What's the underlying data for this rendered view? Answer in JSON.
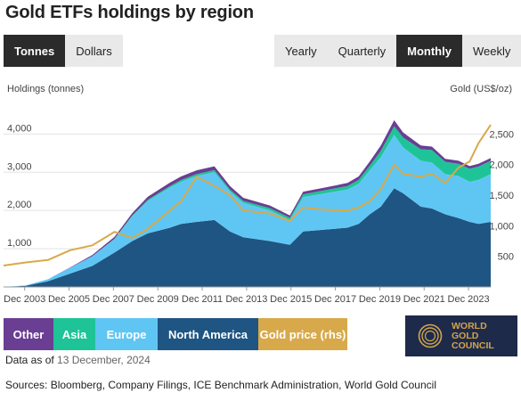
{
  "title": "Gold ETFs holdings by region",
  "unit_toggle": [
    {
      "label": "Tonnes",
      "active": true
    },
    {
      "label": "Dollars",
      "active": false
    }
  ],
  "period_toggle": [
    {
      "label": "Yearly",
      "active": false
    },
    {
      "label": "Quarterly",
      "active": false
    },
    {
      "label": "Monthly",
      "active": true
    },
    {
      "label": "Weekly",
      "active": false
    }
  ],
  "legend": [
    {
      "label": "Other",
      "color": "#6a3e93"
    },
    {
      "label": "Asia",
      "color": "#1ec497"
    },
    {
      "label": "Europe",
      "color": "#5fc6f4"
    },
    {
      "label": "North America",
      "color": "#1f5582"
    },
    {
      "label": "Gold price (rhs)",
      "color": "#d8a94a"
    }
  ],
  "as_of_label": "Data as of",
  "as_of_date": "13 December, 2024",
  "sources": "Sources: Bloomberg, Company Filings, ICE Benchmark Administration, World Gold Council",
  "logo_lines": [
    "WORLD",
    "GOLD",
    "COUNCIL"
  ],
  "chart_data": {
    "type": "area",
    "stacked": true,
    "ylabel": "Holdings (tonnes)",
    "y2label": "Gold (US$/oz)",
    "ylim": [
      0,
      4800
    ],
    "y2lim": [
      0,
      3000
    ],
    "yticks": [
      1000,
      2000,
      3000,
      4000
    ],
    "yticklabels": [
      "1,000",
      "2,000",
      "3,000",
      "4,000"
    ],
    "y2ticks": [
      500,
      1000,
      1500,
      2000,
      2500
    ],
    "y2ticklabels": [
      "500",
      "1,000",
      "1,500",
      "2,000",
      "2,500"
    ],
    "xticks": [
      "Dec 2003",
      "Dec 2005",
      "Dec 2007",
      "Dec 2009",
      "Dec 2011",
      "Dec 2013",
      "Dec 2015",
      "Dec 2017",
      "Dec 2019",
      "Dec 2021",
      "Dec 2023"
    ],
    "xlim": [
      2003.0,
      2024.95
    ],
    "x": [
      2003.0,
      2004.0,
      2005.0,
      2006.0,
      2007.0,
      2008.0,
      2008.8,
      2009.5,
      2010.5,
      2011.0,
      2011.7,
      2012.5,
      2013.2,
      2013.8,
      2015.0,
      2015.9,
      2016.5,
      2017.5,
      2018.5,
      2019.0,
      2019.5,
      2020.0,
      2020.6,
      2021.0,
      2021.8,
      2022.3,
      2022.9,
      2023.5,
      2024.0,
      2024.4,
      2024.95
    ],
    "series": [
      {
        "name": "North America",
        "values": [
          0,
          30,
          150,
          350,
          550,
          900,
          1200,
          1400,
          1550,
          1650,
          1700,
          1750,
          1450,
          1300,
          1200,
          1100,
          1450,
          1500,
          1550,
          1650,
          1900,
          2100,
          2580,
          2450,
          2100,
          2050,
          1900,
          1800,
          1700,
          1650,
          1700
        ]
      },
      {
        "name": "Europe",
        "values": [
          0,
          10,
          50,
          150,
          250,
          350,
          650,
          850,
          1050,
          1100,
          1200,
          1250,
          1050,
          900,
          800,
          650,
          900,
          950,
          1000,
          1050,
          1150,
          1300,
          1400,
          1200,
          1200,
          1200,
          1050,
          1100,
          1050,
          1150,
          1250
        ]
      },
      {
        "name": "Asia",
        "values": [
          0,
          0,
          0,
          0,
          5,
          10,
          20,
          30,
          40,
          45,
          50,
          55,
          50,
          50,
          60,
          60,
          70,
          80,
          90,
          100,
          120,
          160,
          220,
          260,
          300,
          330,
          320,
          320,
          340,
          350,
          350
        ]
      },
      {
        "name": "Other",
        "values": [
          0,
          0,
          0,
          10,
          30,
          50,
          60,
          80,
          90,
          95,
          100,
          100,
          90,
          80,
          70,
          60,
          70,
          70,
          80,
          90,
          110,
          140,
          160,
          130,
          100,
          90,
          80,
          80,
          70,
          70,
          70
        ]
      }
    ],
    "price": {
      "name": "Gold price (rhs)",
      "x": [
        2003.0,
        2004.0,
        2005.0,
        2006.0,
        2007.0,
        2008.0,
        2008.8,
        2009.5,
        2010.5,
        2011.0,
        2011.7,
        2012.5,
        2013.2,
        2013.8,
        2015.0,
        2015.9,
        2016.5,
        2017.5,
        2018.5,
        2019.0,
        2019.5,
        2020.0,
        2020.6,
        2021.0,
        2021.8,
        2022.3,
        2022.9,
        2023.5,
        2024.0,
        2024.4,
        2024.95
      ],
      "values": [
        350,
        400,
        440,
        600,
        680,
        900,
        800,
        950,
        1250,
        1400,
        1800,
        1650,
        1500,
        1250,
        1200,
        1080,
        1300,
        1260,
        1250,
        1300,
        1400,
        1600,
        2000,
        1850,
        1800,
        1850,
        1700,
        1950,
        2050,
        2350,
        2650
      ]
    }
  }
}
